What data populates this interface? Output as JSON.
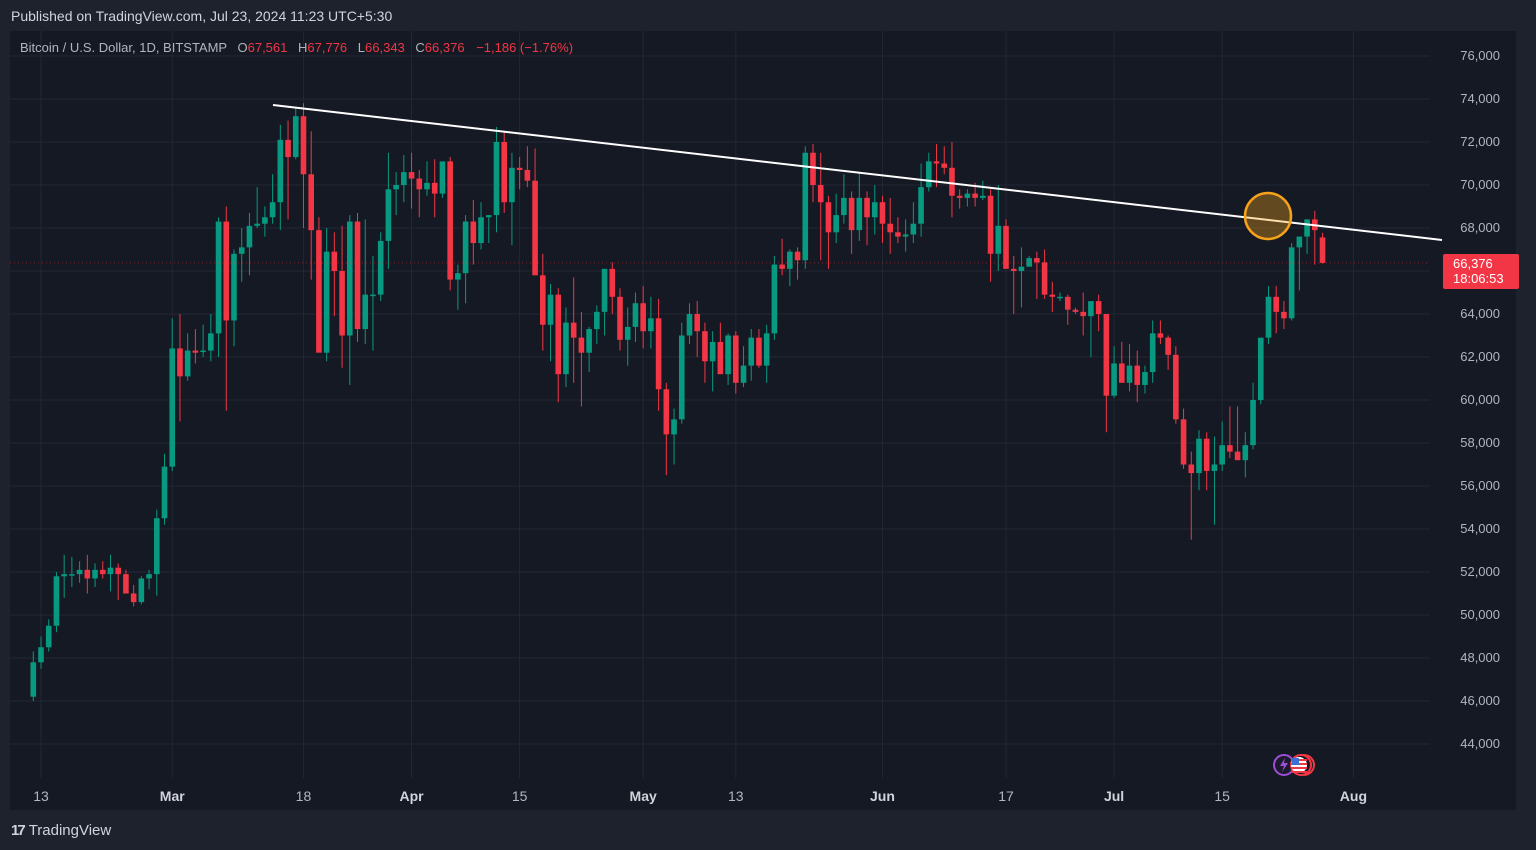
{
  "header": {
    "published": "Published on TradingView.com, Jul 23, 2024 11:23 UTC+5:30"
  },
  "legend": {
    "symbol": "Bitcoin / U.S. Dollar, 1D, BITSTAMP",
    "open_label": "O",
    "open": "67,561",
    "high_label": "H",
    "high": "67,776",
    "low_label": "L",
    "low": "66,343",
    "close_label": "C",
    "close": "66,376",
    "change": "−1,186 (−1.76%)"
  },
  "price_tag": {
    "price": "66,376",
    "countdown": "18:06:53",
    "color": "#f23645"
  },
  "footer": {
    "logo_icon": "tradingview-logo-icon",
    "brand": "TradingView"
  },
  "colors": {
    "up": "#089981",
    "down": "#f23645",
    "trendline": "#ffffff",
    "highlight": "#f7a21b"
  },
  "chart_data": {
    "type": "candlestick",
    "title": "Bitcoin / U.S. Dollar, 1D, BITSTAMP",
    "xlabel": "",
    "ylabel": "",
    "ylim": [
      42500,
      77000
    ],
    "grid": true,
    "y_ticks": [
      "76,000",
      "74,000",
      "72,000",
      "70,000",
      "68,000",
      "66,000",
      "64,000",
      "62,000",
      "60,000",
      "58,000",
      "56,000",
      "54,000",
      "52,000",
      "50,000",
      "48,000",
      "46,000",
      "44,000"
    ],
    "x_ticks": [
      {
        "label": "13",
        "day": 0,
        "month": false
      },
      {
        "label": "Mar",
        "day": 17,
        "month": true
      },
      {
        "label": "18",
        "day": 34,
        "month": false
      },
      {
        "label": "Apr",
        "day": 48,
        "month": true
      },
      {
        "label": "15",
        "day": 62,
        "month": false
      },
      {
        "label": "May",
        "day": 78,
        "month": true
      },
      {
        "label": "13",
        "day": 90,
        "month": false
      },
      {
        "label": "Jun",
        "day": 109,
        "month": true
      },
      {
        "label": "17",
        "day": 125,
        "month": false
      },
      {
        "label": "Jul",
        "day": 139,
        "month": true
      },
      {
        "label": "15",
        "day": 153,
        "month": false
      },
      {
        "label": "Aug",
        "day": 170,
        "month": true
      }
    ],
    "start_date": "2024-02-12",
    "ohlc": [
      [
        46200,
        48300,
        46000,
        47800
      ],
      [
        47800,
        49000,
        47500,
        48500
      ],
      [
        48500,
        49800,
        48300,
        49500
      ],
      [
        49500,
        52000,
        49200,
        51800
      ],
      [
        51800,
        52800,
        50800,
        51900
      ],
      [
        51900,
        52700,
        51300,
        51900
      ],
      [
        51900,
        52500,
        51500,
        52100
      ],
      [
        52100,
        52800,
        51000,
        51700
      ],
      [
        51700,
        52400,
        51300,
        52100
      ],
      [
        52100,
        52500,
        51700,
        51900
      ],
      [
        51900,
        52800,
        51100,
        52200
      ],
      [
        52200,
        52400,
        50700,
        51900
      ],
      [
        51900,
        52100,
        51100,
        51000
      ],
      [
        51000,
        51400,
        50400,
        50600
      ],
      [
        50600,
        51800,
        50500,
        51700
      ],
      [
        51700,
        52100,
        51200,
        51900
      ],
      [
        51900,
        54900,
        50900,
        54500
      ],
      [
        54500,
        57500,
        54200,
        56900
      ],
      [
        56900,
        63800,
        56700,
        62400
      ],
      [
        62400,
        64000,
        59000,
        61100
      ],
      [
        61100,
        63100,
        60900,
        62300
      ],
      [
        62300,
        63300,
        61700,
        62200
      ],
      [
        62300,
        63500,
        62000,
        62300
      ],
      [
        62300,
        64000,
        61800,
        63100
      ],
      [
        63100,
        68500,
        62000,
        68300
      ],
      [
        68300,
        69000,
        59500,
        63700
      ],
      [
        63700,
        67000,
        62500,
        66800
      ],
      [
        66800,
        68000,
        65500,
        67100
      ],
      [
        67100,
        68700,
        65800,
        68100
      ],
      [
        68100,
        69900,
        68000,
        68200
      ],
      [
        68200,
        69000,
        67600,
        68500
      ],
      [
        68500,
        70500,
        68200,
        69200
      ],
      [
        69200,
        72800,
        67900,
        72100
      ],
      [
        72100,
        73000,
        68400,
        71300
      ],
      [
        71300,
        73600,
        71200,
        73200
      ],
      [
        73200,
        73800,
        68000,
        70500
      ],
      [
        70500,
        72500,
        65600,
        67900
      ],
      [
        67900,
        68500,
        65000,
        62200
      ],
      [
        62200,
        68000,
        61800,
        66900
      ],
      [
        66900,
        67800,
        63900,
        66000
      ],
      [
        66000,
        68100,
        61500,
        63000
      ],
      [
        63000,
        68600,
        60700,
        68300
      ],
      [
        68300,
        68700,
        62700,
        63300
      ],
      [
        63300,
        68400,
        62600,
        64900
      ],
      [
        64900,
        66700,
        62300,
        64900
      ],
      [
        64900,
        67800,
        64600,
        67400
      ],
      [
        67400,
        71500,
        66100,
        69800
      ],
      [
        69800,
        70600,
        68600,
        70000
      ],
      [
        70000,
        71400,
        69200,
        70600
      ],
      [
        70600,
        71500,
        68900,
        70300
      ],
      [
        70300,
        70700,
        68500,
        69800
      ],
      [
        69800,
        71100,
        69500,
        70100
      ],
      [
        70100,
        71200,
        68500,
        69600
      ],
      [
        69600,
        70800,
        69400,
        71100
      ],
      [
        71100,
        71300,
        65100,
        65600
      ],
      [
        65600,
        66300,
        64200,
        65900
      ],
      [
        65900,
        68600,
        64500,
        68300
      ],
      [
        68300,
        69300,
        66300,
        67300
      ],
      [
        67300,
        69200,
        67000,
        68500
      ],
      [
        68500,
        68600,
        67300,
        68600
      ],
      [
        68600,
        72700,
        67800,
        72000
      ],
      [
        72000,
        72500,
        68700,
        69200
      ],
      [
        69200,
        71500,
        67200,
        70800
      ],
      [
        70800,
        71300,
        69800,
        70700
      ],
      [
        70700,
        71800,
        69900,
        70200
      ],
      [
        70200,
        71700,
        66000,
        65800
      ],
      [
        65800,
        66800,
        62300,
        63500
      ],
      [
        63500,
        65400,
        61800,
        64900
      ],
      [
        64900,
        65200,
        59900,
        61200
      ],
      [
        61200,
        64300,
        60600,
        63600
      ],
      [
        63600,
        65700,
        60800,
        62900
      ],
      [
        62900,
        64100,
        59700,
        62200
      ],
      [
        62200,
        63400,
        61300,
        63300
      ],
      [
        63300,
        64400,
        62600,
        64100
      ],
      [
        64100,
        65400,
        63000,
        66100
      ],
      [
        66100,
        66400,
        64000,
        64800
      ],
      [
        64800,
        65200,
        62300,
        62800
      ],
      [
        62800,
        64300,
        61600,
        63400
      ],
      [
        63400,
        65000,
        62700,
        64500
      ],
      [
        64500,
        65300,
        62400,
        63200
      ],
      [
        63200,
        64800,
        62400,
        63800
      ],
      [
        63800,
        64700,
        59500,
        60500
      ],
      [
        60500,
        60800,
        56500,
        58400
      ],
      [
        58400,
        59600,
        57000,
        59100
      ],
      [
        59100,
        63600,
        58900,
        63000
      ],
      [
        63000,
        64500,
        62600,
        64000
      ],
      [
        64000,
        64600,
        62000,
        63200
      ],
      [
        63200,
        63600,
        60800,
        61800
      ],
      [
        61800,
        63200,
        60400,
        62700
      ],
      [
        62700,
        63600,
        61300,
        61200
      ],
      [
        61200,
        63100,
        60700,
        63000
      ],
      [
        63000,
        63200,
        60300,
        60800
      ],
      [
        60800,
        62500,
        60600,
        61600
      ],
      [
        61600,
        63300,
        60900,
        62900
      ],
      [
        62900,
        63300,
        61500,
        61600
      ],
      [
        61600,
        63500,
        60800,
        63100
      ],
      [
        63100,
        66700,
        62800,
        66300
      ],
      [
        66300,
        67500,
        65800,
        66100
      ],
      [
        66100,
        67000,
        65300,
        66900
      ],
      [
        66900,
        67100,
        65600,
        66500
      ],
      [
        66500,
        71800,
        66100,
        71500
      ],
      [
        71500,
        71900,
        69200,
        70000
      ],
      [
        70000,
        71500,
        66500,
        69200
      ],
      [
        69200,
        69500,
        66100,
        67800
      ],
      [
        67800,
        69600,
        67300,
        68600
      ],
      [
        68600,
        70500,
        68200,
        69400
      ],
      [
        69400,
        69700,
        66800,
        67900
      ],
      [
        67900,
        70600,
        67400,
        69400
      ],
      [
        69400,
        69700,
        67200,
        68500
      ],
      [
        68500,
        70000,
        67700,
        69200
      ],
      [
        69200,
        69500,
        67300,
        68200
      ],
      [
        68200,
        69400,
        66800,
        67800
      ],
      [
        67800,
        68500,
        67300,
        67600
      ],
      [
        67600,
        68400,
        66900,
        67700
      ],
      [
        67700,
        69200,
        67300,
        68200
      ],
      [
        68200,
        71000,
        67600,
        69900
      ],
      [
        69900,
        71500,
        69700,
        71100
      ],
      [
        71100,
        71900,
        69900,
        71000
      ],
      [
        71000,
        71800,
        70500,
        70800
      ],
      [
        70800,
        72000,
        68500,
        69500
      ],
      [
        69500,
        69800,
        68900,
        69400
      ],
      [
        69400,
        69800,
        69000,
        69600
      ],
      [
        69600,
        70100,
        69000,
        69400
      ],
      [
        69400,
        70200,
        69300,
        69500
      ],
      [
        69500,
        69800,
        65500,
        66800
      ],
      [
        66800,
        70000,
        66000,
        68100
      ],
      [
        68100,
        68400,
        66200,
        66100
      ],
      [
        66100,
        66700,
        64000,
        66000
      ],
      [
        66000,
        67100,
        64300,
        66200
      ],
      [
        66200,
        66700,
        66500,
        66600
      ],
      [
        66600,
        66900,
        64700,
        66400
      ],
      [
        66400,
        67000,
        64700,
        64900
      ],
      [
        64900,
        65500,
        64100,
        64800
      ],
      [
        64800,
        65000,
        64600,
        64800
      ],
      [
        64800,
        64900,
        63500,
        64200
      ],
      [
        64200,
        64300,
        64000,
        64100
      ],
      [
        64100,
        65000,
        63000,
        63900
      ],
      [
        63900,
        64000,
        62000,
        64600
      ],
      [
        64600,
        64900,
        63200,
        64000
      ],
      [
        64000,
        64000,
        58500,
        60200
      ],
      [
        60200,
        62500,
        60100,
        61700
      ],
      [
        61700,
        62700,
        61000,
        60800
      ],
      [
        60800,
        62600,
        60400,
        61600
      ],
      [
        61600,
        62300,
        59900,
        60700
      ],
      [
        60700,
        61600,
        60300,
        61300
      ],
      [
        61300,
        63700,
        60800,
        63100
      ],
      [
        63100,
        63700,
        62600,
        62900
      ],
      [
        62900,
        63000,
        61400,
        62100
      ],
      [
        62100,
        62500,
        58900,
        59100
      ],
      [
        59100,
        59600,
        56800,
        57000
      ],
      [
        57000,
        57600,
        53500,
        56600
      ],
      [
        56600,
        58600,
        55800,
        58200
      ],
      [
        58200,
        58500,
        55800,
        56700
      ],
      [
        56700,
        58300,
        54200,
        57000
      ],
      [
        57000,
        59000,
        56700,
        57900
      ],
      [
        57900,
        59700,
        57300,
        57600
      ],
      [
        57600,
        59700,
        57600,
        57200
      ],
      [
        57200,
        58500,
        56400,
        57900
      ],
      [
        57900,
        60800,
        57700,
        60000
      ],
      [
        60000,
        62800,
        59800,
        62900
      ],
      [
        62900,
        65300,
        62600,
        64800
      ],
      [
        64800,
        65300,
        63100,
        64100
      ],
      [
        64100,
        64600,
        63300,
        63800
      ],
      [
        63800,
        67300,
        63700,
        67100
      ],
      [
        67100,
        67500,
        65100,
        67600
      ],
      [
        67600,
        68400,
        66800,
        68400
      ],
      [
        68400,
        68800,
        66300,
        67900
      ],
      [
        67561,
        67776,
        66343,
        66376
      ]
    ]
  }
}
